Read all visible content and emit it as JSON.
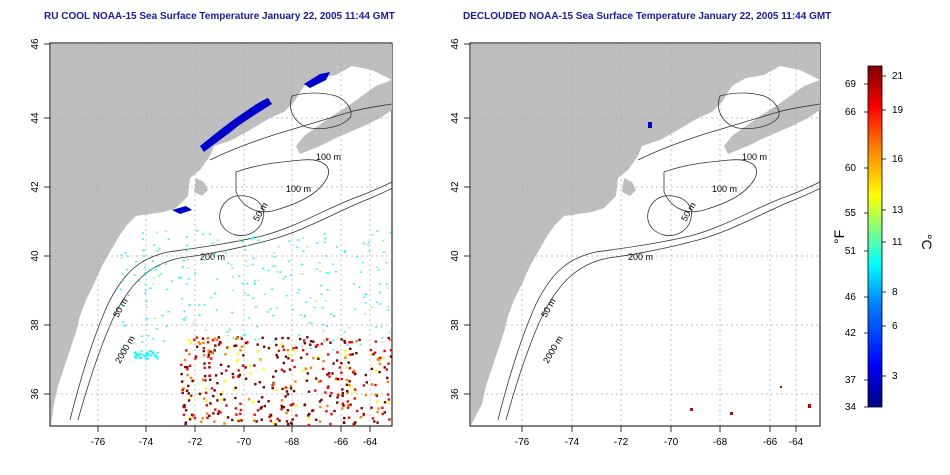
{
  "maps": [
    {
      "id": "ru-cool",
      "title": "RU COOL NOAA-15 Sea Surface Temperature January 22, 2005 11:44 GMT"
    },
    {
      "id": "declouded",
      "title": "DECLOUDED NOAA-15 Sea Surface Temperature January 22, 2005 11:44 GMT"
    }
  ],
  "axes": {
    "lon_ticks": [
      "-76",
      "-74",
      "-72",
      "-70",
      "-68",
      "-66",
      "-64"
    ],
    "lat_ticks": [
      "46",
      "44",
      "42",
      "40",
      "38",
      "36"
    ]
  },
  "contour_labels": {
    "c100a": "100 m",
    "c100b": "100 m",
    "c50a": "50 m",
    "c200": "200 m",
    "c50b": "50 m",
    "c2000": "2000 m"
  },
  "colorbar": {
    "fahrenheit_ticks": [
      "69",
      "66",
      "60",
      "55",
      "51",
      "46",
      "42",
      "37",
      "34"
    ],
    "celsius_ticks": [
      "21",
      "19",
      "16",
      "13",
      "11",
      "8",
      "6",
      "3"
    ],
    "fahrenheit_unit": "°F",
    "celsius_unit": "°C",
    "colors": [
      "#00007f",
      "#0000ff",
      "#007fff",
      "#00ffff",
      "#7fff7f",
      "#ffff00",
      "#ff7f00",
      "#ff0000",
      "#7f0000"
    ]
  }
}
